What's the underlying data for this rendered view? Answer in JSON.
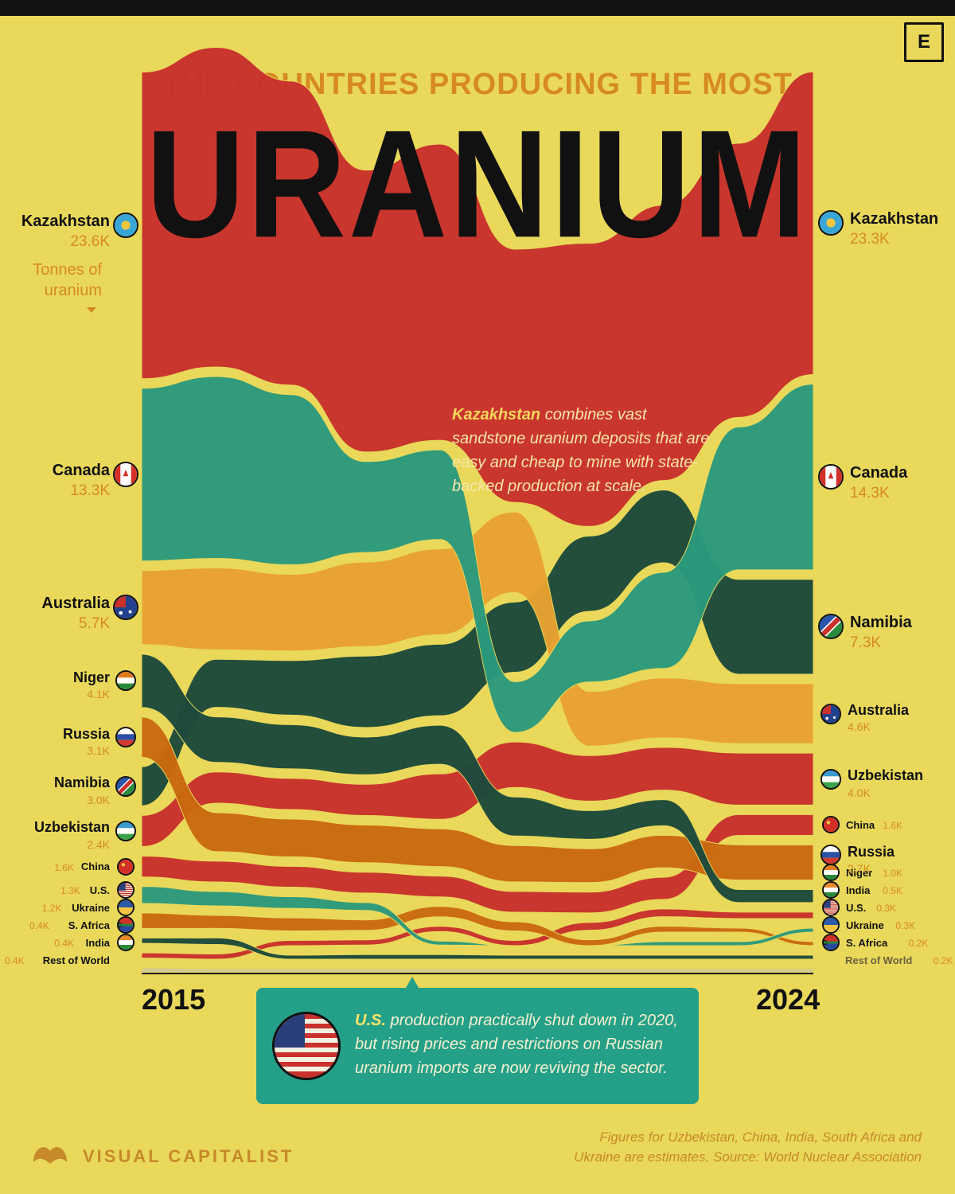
{
  "header": {
    "subtitle": "THE COUNTRIES PRODUCING THE MOST",
    "title": "URANIUM",
    "brand_badge": "E",
    "unit_label": "Tonnes of uranium"
  },
  "years": {
    "start": "2015",
    "end": "2024"
  },
  "notes": {
    "kazakhstan_bold": "Kazakhstan",
    "kazakhstan_text": " combines vast sandstone uranium deposits that are easy and cheap to mine with state-backed production at scale.",
    "us_bold": "U.S.",
    "us_text": " production practically shut down in 2020, but rising prices and restrictions on Russian uranium imports are now reviving the sector.",
    "source": "Figures for Uzbekistan, China, India, South Africa and Ukraine are estimates. Source: World Nuclear Association"
  },
  "footer": {
    "logo_text": "VISUAL CAPITALIST"
  },
  "colors": {
    "background": "#e9d85a",
    "Kazakhstan": "#c8312c",
    "Canada": "#2c9a7d",
    "Australia": "#e8a232",
    "Niger": "#1d4a3c",
    "Namibia": "#1d4a3c",
    "Russia": "#cb6a10",
    "Uzbekistan": "#c8312c",
    "China": "#c8312c",
    "U.S.": "#2c9a7d",
    "Ukraine": "#cb6a10",
    "S. Africa": "#1d4a3c",
    "India": "#c8312c",
    "Rest of World": "#cfc8a0"
  },
  "chart_data": {
    "type": "area",
    "subtype": "bump-stream (ranked flows)",
    "x": [
      2015,
      2016,
      2017,
      2018,
      2019,
      2020,
      2021,
      2022,
      2023,
      2024
    ],
    "unit": "Tonnes of uranium",
    "series": [
      {
        "name": "Kazakhstan",
        "flag_icon": "flag-kazakhstan-icon",
        "label_start": "23.6K",
        "label_end": "23.3K",
        "values": [
          23600,
          24600,
          23400,
          21700,
          22800,
          19500,
          21800,
          21200,
          21100,
          23300
        ],
        "ranks": [
          1,
          1,
          1,
          1,
          1,
          1,
          1,
          1,
          1,
          1
        ]
      },
      {
        "name": "Canada",
        "flag_icon": "flag-canada-icon",
        "label_start": "13.3K",
        "label_end": "14.3K",
        "values": [
          13300,
          14000,
          13100,
          7000,
          6900,
          3900,
          4700,
          7400,
          11000,
          14300
        ],
        "ranks": [
          2,
          2,
          2,
          2,
          2,
          4,
          3,
          3,
          2,
          2
        ]
      },
      {
        "name": "Australia",
        "flag_icon": "flag-australia-icon",
        "label_start": "5.7K",
        "label_end": "4.6K",
        "values": [
          5700,
          6300,
          5900,
          6500,
          6600,
          6200,
          4200,
          4600,
          4600,
          4600
        ],
        "ranks": [
          3,
          3,
          3,
          3,
          3,
          2,
          4,
          4,
          4,
          4
        ]
      },
      {
        "name": "Niger",
        "flag_icon": "flag-niger-icon",
        "label_start": "4.1K",
        "label_end": "1.0K",
        "values": [
          4100,
          3500,
          3400,
          2900,
          3000,
          3000,
          2200,
          2000,
          1000,
          1000
        ],
        "ranks": [
          4,
          5,
          5,
          5,
          5,
          6,
          6,
          6,
          8,
          8
        ]
      },
      {
        "name": "Russia",
        "flag_icon": "flag-russia-icon",
        "label_start": "3.1K",
        "label_end": "2.7K",
        "values": [
          3100,
          3000,
          2900,
          2900,
          2900,
          2800,
          2600,
          2500,
          2700,
          2700
        ],
        "ranks": [
          5,
          7,
          7,
          7,
          7,
          7,
          7,
          7,
          7,
          7
        ]
      },
      {
        "name": "Namibia",
        "flag_icon": "flag-namibia-icon",
        "label_start": "3.0K",
        "label_end": "7.3K",
        "values": [
          3000,
          3700,
          4200,
          5500,
          5500,
          5400,
          5800,
          5600,
          7300,
          7300
        ],
        "ranks": [
          6,
          4,
          4,
          4,
          4,
          3,
          2,
          2,
          3,
          3
        ]
      },
      {
        "name": "Uzbekistan",
        "flag_icon": "flag-uzbekistan-icon",
        "label_start": "2.4K",
        "label_end": "4.0K",
        "values": [
          2400,
          2400,
          2400,
          2400,
          3500,
          3500,
          3500,
          3300,
          4000,
          4000
        ],
        "ranks": [
          7,
          6,
          6,
          6,
          6,
          5,
          5,
          5,
          5,
          5
        ]
      },
      {
        "name": "China",
        "flag_icon": "flag-china-icon",
        "label_start": "1.6K",
        "label_end": "1.6K",
        "values": [
          1600,
          1600,
          1600,
          1600,
          1600,
          1600,
          1600,
          1700,
          1600,
          1600
        ],
        "ranks": [
          8,
          8,
          8,
          8,
          8,
          8,
          8,
          8,
          6,
          6
        ]
      },
      {
        "name": "U.S.",
        "flag_icon": "flag-us-icon",
        "label_start": "1.3K",
        "label_end": "0.3K",
        "values": [
          1300,
          1100,
          900,
          600,
          60,
          8,
          8,
          75,
          50,
          300
        ],
        "ranks": [
          9,
          9,
          9,
          9,
          11,
          11,
          11,
          11,
          11,
          10
        ]
      },
      {
        "name": "Ukraine",
        "flag_icon": "flag-ukraine-icon",
        "label_start": "1.2K",
        "label_end": "0.3K",
        "values": [
          1200,
          1000,
          1000,
          800,
          800,
          700,
          450,
          450,
          300,
          300
        ],
        "ranks": [
          10,
          10,
          10,
          10,
          9,
          9,
          10,
          10,
          10,
          11
        ]
      },
      {
        "name": "S. Africa",
        "flag_icon": "flag-south-africa-icon",
        "label_start": "0.4K",
        "label_end": "0.2K",
        "values": [
          400,
          500,
          300,
          350,
          350,
          250,
          200,
          200,
          200,
          200
        ],
        "ranks": [
          11,
          11,
          12,
          12,
          12,
          12,
          12,
          12,
          12,
          12
        ]
      },
      {
        "name": "India",
        "flag_icon": "flag-india-icon",
        "label_start": "0.4K",
        "label_end": "0.5K",
        "values": [
          400,
          400,
          400,
          400,
          400,
          400,
          600,
          600,
          500,
          500
        ],
        "ranks": [
          12,
          12,
          11,
          11,
          10,
          10,
          9,
          9,
          9,
          9
        ]
      },
      {
        "name": "Rest of World",
        "flag_icon": "",
        "label_start": "0.4K",
        "label_end": "0.2K",
        "values": [
          400,
          300,
          300,
          300,
          300,
          300,
          200,
          200,
          200,
          200
        ],
        "ranks": [
          13,
          13,
          13,
          13,
          13,
          13,
          13,
          13,
          13,
          13
        ]
      }
    ]
  }
}
